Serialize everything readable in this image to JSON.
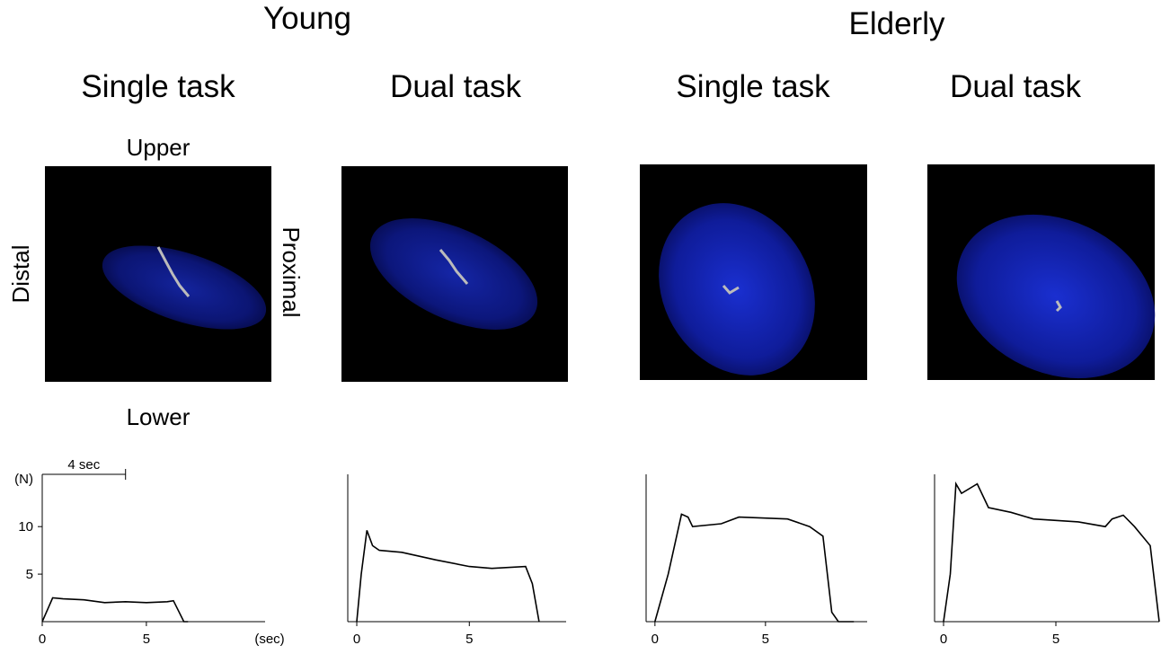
{
  "headings": {
    "young": "Young",
    "elderly": "Elderly"
  },
  "labels": {
    "upper": "Upper",
    "lower": "Lower",
    "distal": "Distal",
    "proximal": "Proximal"
  },
  "chart_data": [
    {
      "type": "line",
      "title": "Single task",
      "color": "#000000",
      "x": [
        0,
        0.3,
        0.5,
        1,
        2,
        3,
        4,
        5,
        6,
        6.3,
        6.8,
        7
      ],
      "values": [
        0,
        1.5,
        2.5,
        2.4,
        2.3,
        2.0,
        2.1,
        2.0,
        2.1,
        2.2,
        0,
        0
      ],
      "xlim": [
        0,
        10.7
      ],
      "ylim": [
        0,
        15.5
      ],
      "xticks": [
        0,
        5
      ],
      "yticks": [
        5,
        10
      ],
      "y_label": "(N)",
      "x_label": "(sec)",
      "annotation": {
        "text": "4 sec",
        "start": 0,
        "end": 4
      }
    },
    {
      "type": "line",
      "title": "Dual task",
      "color": "#000000",
      "x": [
        0,
        0.2,
        0.45,
        0.7,
        1,
        2,
        3.5,
        5,
        6,
        7.5,
        7.8,
        8.1
      ],
      "values": [
        0,
        5,
        9.6,
        8,
        7.5,
        7.3,
        6.5,
        5.8,
        5.6,
        5.8,
        4,
        0
      ],
      "xlim": [
        -0.4,
        9.3
      ],
      "ylim": [
        0,
        15.5
      ],
      "xticks": [
        0,
        5
      ]
    },
    {
      "type": "line",
      "title": "Single task",
      "color": "#000000",
      "x": [
        0,
        0.6,
        1.2,
        1.5,
        1.7,
        3,
        3.8,
        6,
        7,
        7.6,
        8,
        8.3,
        9
      ],
      "values": [
        0,
        5,
        11.3,
        11,
        10,
        10.3,
        11,
        10.8,
        10,
        9,
        1,
        0,
        0
      ],
      "xlim": [
        -0.4,
        9.6
      ],
      "ylim": [
        0,
        15.5
      ],
      "xticks": [
        0,
        5
      ]
    },
    {
      "type": "line",
      "title": "Dual task",
      "color": "#000000",
      "x": [
        0,
        0.3,
        0.55,
        0.8,
        1.5,
        2,
        3,
        4,
        6,
        7.2,
        7.5,
        8,
        8.5,
        9.2,
        9.6
      ],
      "values": [
        0,
        5,
        14.5,
        13.5,
        14.5,
        12,
        11.5,
        10.8,
        10.5,
        10,
        10.8,
        11.2,
        10,
        8,
        0
      ],
      "xlim": [
        -0.4,
        9.6
      ],
      "ylim": [
        0,
        15.5
      ],
      "xticks": [
        0,
        5
      ]
    }
  ]
}
